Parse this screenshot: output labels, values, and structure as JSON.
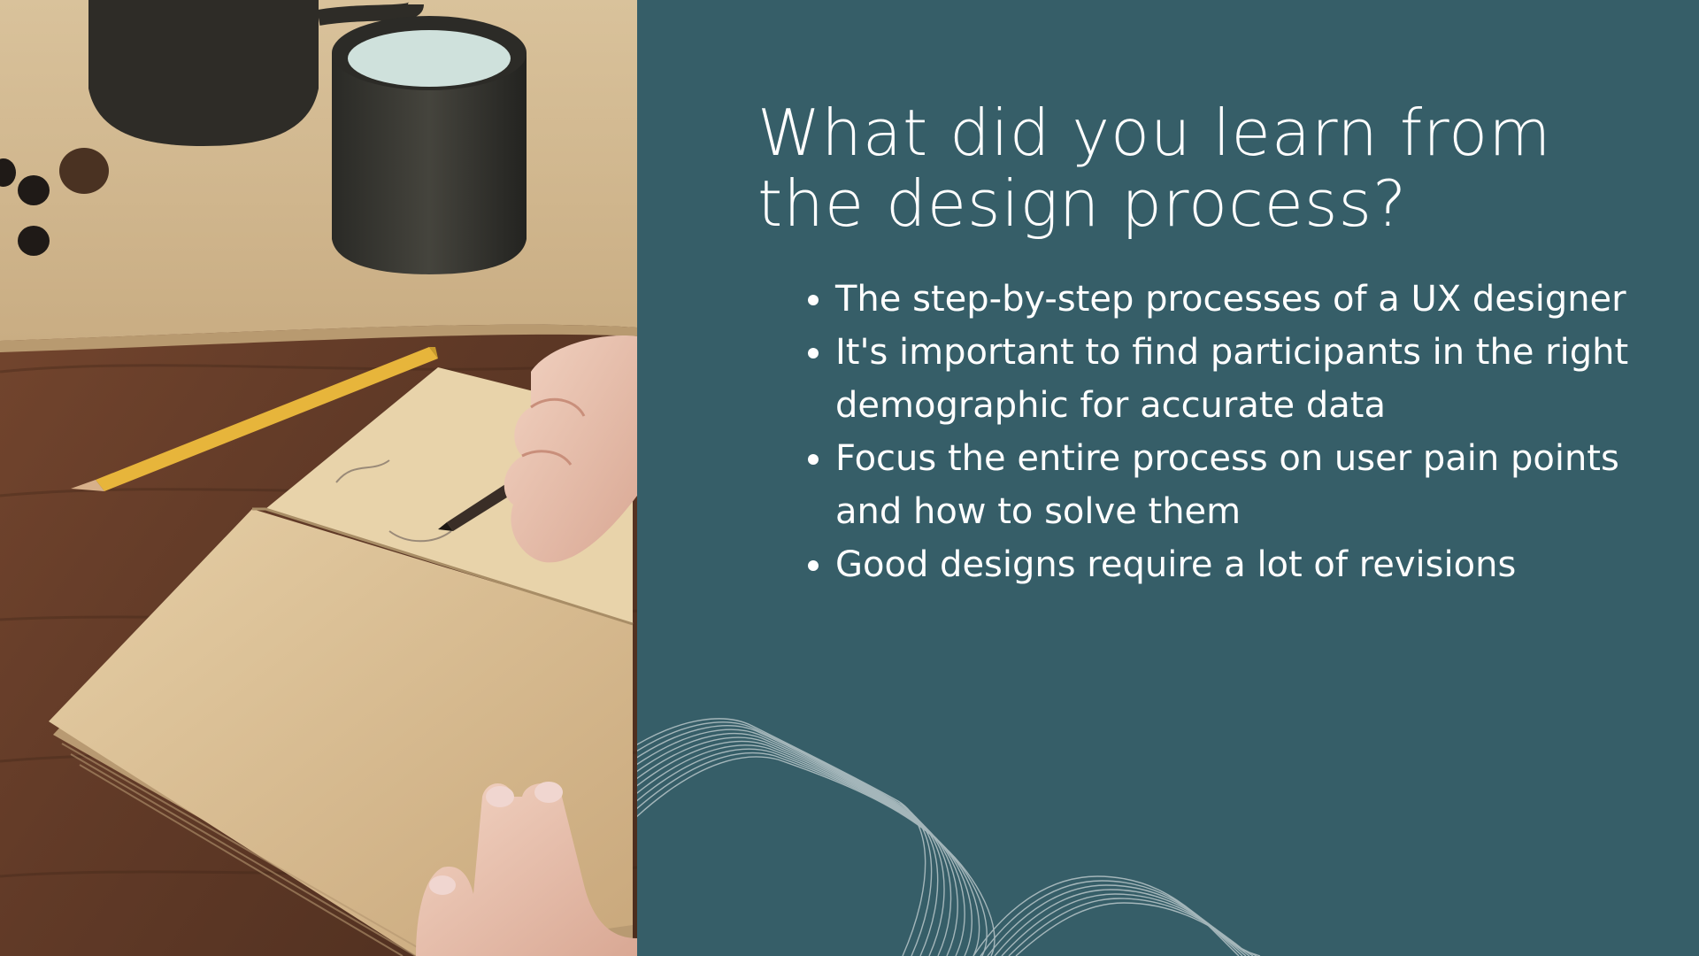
{
  "slide": {
    "title": "What did you learn from the design process?",
    "bullets": [
      "The step-by-step processes of a UX designer",
      " It's important to find participants in the right demographic for accurate data",
      "Focus the entire process on user pain points and how to solve them",
      "Good designs require a lot of revisions"
    ]
  },
  "photo": {
    "icon": "notebook-coffee-photo"
  },
  "colors": {
    "background": "#365E68",
    "text": "#FFFFFF",
    "wave_lines": "#C9D4D6"
  }
}
